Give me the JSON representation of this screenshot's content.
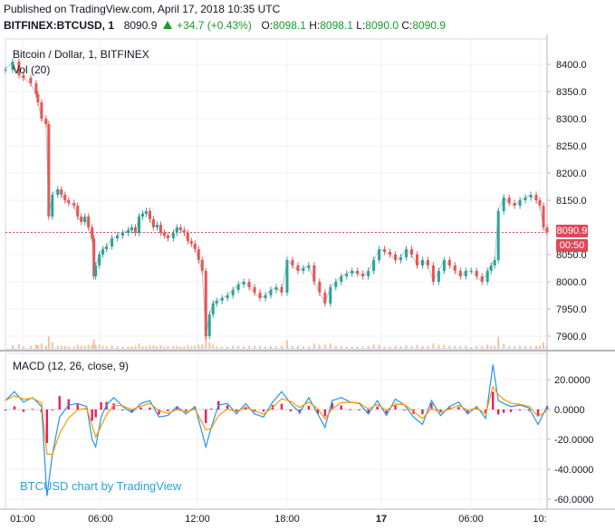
{
  "header": {
    "published": "Published on TradingView.com, April 17, 2018 10:35 UTC",
    "symbol": "BITFINEX:BTCUSD, 1",
    "last": "8090.9",
    "change": "+34.7 (+0.43%)",
    "o_label": "O:",
    "o_value": "8098.1",
    "h_label": "H:",
    "h_value": "8098.1",
    "l_label": "L:",
    "l_value": "8090.0",
    "c_label": "C:",
    "c_value": "8090.9"
  },
  "price_pane": {
    "title": "Bitcoin / Dollar, 1, BITFINEX",
    "volume_label": "Vol (20)",
    "current_price": "8090.9",
    "countdown": "00:50"
  },
  "macd_pane": {
    "title": "MACD (12, 26, close, 9)"
  },
  "attribution": "BTCUSD chart by TradingView",
  "colors": {
    "up": "#26a69a",
    "down": "#ef5350",
    "price_line": "#e0475a",
    "macd_line": "#2196f3",
    "signal_line": "#ff9800",
    "histogram": "#e91e63",
    "volume": "#f4c2a1",
    "grid": "#eef0f3",
    "axis_text": "#131722",
    "accent": "#2aa3d6"
  },
  "chart_data": [
    {
      "type": "line",
      "name": "price",
      "ylim": [
        7870,
        8420
      ],
      "y_ticks": [
        "8400.0",
        "8350.0",
        "8300.0",
        "8250.0",
        "8200.0",
        "8150.0",
        "8050.0",
        "8000.0",
        "7950.0",
        "7900.0"
      ],
      "x_ticks": [
        "01:00",
        "06:00",
        "12:00",
        "18:00",
        "17",
        "06:00",
        "10:"
      ],
      "x": [
        0,
        8,
        15,
        20,
        28,
        34,
        36,
        40,
        45,
        48,
        52,
        58,
        62,
        66,
        70,
        76,
        80,
        84,
        88,
        92,
        96,
        98,
        100,
        104,
        108,
        112,
        118,
        124,
        130,
        136,
        140,
        144,
        148,
        152,
        156,
        160,
        164,
        168,
        172,
        176,
        180,
        186,
        190,
        194,
        198,
        202,
        206,
        210,
        214,
        218,
        222,
        226,
        230,
        234,
        240,
        246,
        252,
        258,
        264,
        270,
        276,
        282,
        288,
        294,
        300,
        306,
        312,
        318,
        324,
        330,
        336,
        342,
        348,
        354,
        360,
        366,
        372,
        378,
        384,
        390,
        396,
        402,
        408,
        414,
        420,
        426,
        432,
        438,
        444,
        450,
        456,
        462,
        468,
        474,
        480,
        486,
        492,
        498,
        504,
        510,
        516,
        522,
        528,
        534,
        538,
        542,
        546,
        552,
        558,
        564,
        570,
        576,
        582,
        588,
        592,
        596,
        600
      ],
      "values": [
        8390,
        8405,
        8380,
        8375,
        8365,
        8345,
        8330,
        8300,
        8290,
        8120,
        8160,
        8170,
        8160,
        8150,
        8145,
        8140,
        8120,
        8110,
        8120,
        8100,
        8080,
        8010,
        8030,
        8050,
        8060,
        8065,
        8080,
        8085,
        8090,
        8095,
        8100,
        8090,
        8120,
        8125,
        8130,
        8115,
        8100,
        8105,
        8090,
        8085,
        8080,
        8090,
        8100,
        8095,
        8090,
        8075,
        8070,
        8060,
        8040,
        8020,
        7900,
        7940,
        7960,
        7965,
        7970,
        7975,
        7985,
        7995,
        8000,
        7990,
        7980,
        7970,
        7975,
        7985,
        7990,
        7980,
        8040,
        8030,
        8020,
        8025,
        8030,
        8000,
        7980,
        7960,
        7990,
        8000,
        8010,
        8015,
        8020,
        8015,
        8010,
        8020,
        8040,
        8060,
        8055,
        8050,
        8040,
        8045,
        8060,
        8050,
        8030,
        8040,
        8030,
        8000,
        8020,
        8040,
        8030,
        8020,
        8010,
        8020,
        8020,
        8010,
        8000,
        8020,
        8030,
        8040,
        8130,
        8155,
        8145,
        8140,
        8150,
        8155,
        8160,
        8150,
        8140,
        8100,
        8090.9
      ]
    },
    {
      "type": "line",
      "name": "MACD",
      "ylim": [
        -62,
        35
      ],
      "y_ticks": [
        "20.0000",
        "0.0000",
        "-20.0000",
        "-40.0000",
        "-60.0000"
      ],
      "x": [
        0,
        10,
        20,
        30,
        40,
        46,
        52,
        60,
        70,
        80,
        90,
        96,
        100,
        106,
        112,
        120,
        130,
        140,
        150,
        160,
        170,
        180,
        190,
        200,
        210,
        222,
        228,
        236,
        246,
        256,
        266,
        276,
        286,
        296,
        306,
        316,
        326,
        336,
        346,
        354,
        362,
        372,
        382,
        392,
        402,
        412,
        422,
        432,
        442,
        452,
        462,
        472,
        482,
        492,
        502,
        512,
        522,
        532,
        540,
        546,
        552,
        560,
        570,
        580,
        590,
        600
      ],
      "values": [
        6,
        12,
        5,
        8,
        2,
        -58,
        -30,
        -5,
        3,
        4,
        2,
        -20,
        -25,
        -5,
        3,
        8,
        2,
        -2,
        4,
        6,
        -5,
        -4,
        2,
        -3,
        2,
        -25,
        -12,
        3,
        4,
        -3,
        4,
        -3,
        -5,
        5,
        12,
        4,
        -2,
        8,
        -3,
        -12,
        6,
        8,
        5,
        4,
        -3,
        6,
        -4,
        7,
        3,
        -5,
        -10,
        6,
        -4,
        2,
        5,
        -3,
        2,
        -6,
        30,
        6,
        4,
        2,
        3,
        1,
        -10,
        2
      ]
    }
  ]
}
